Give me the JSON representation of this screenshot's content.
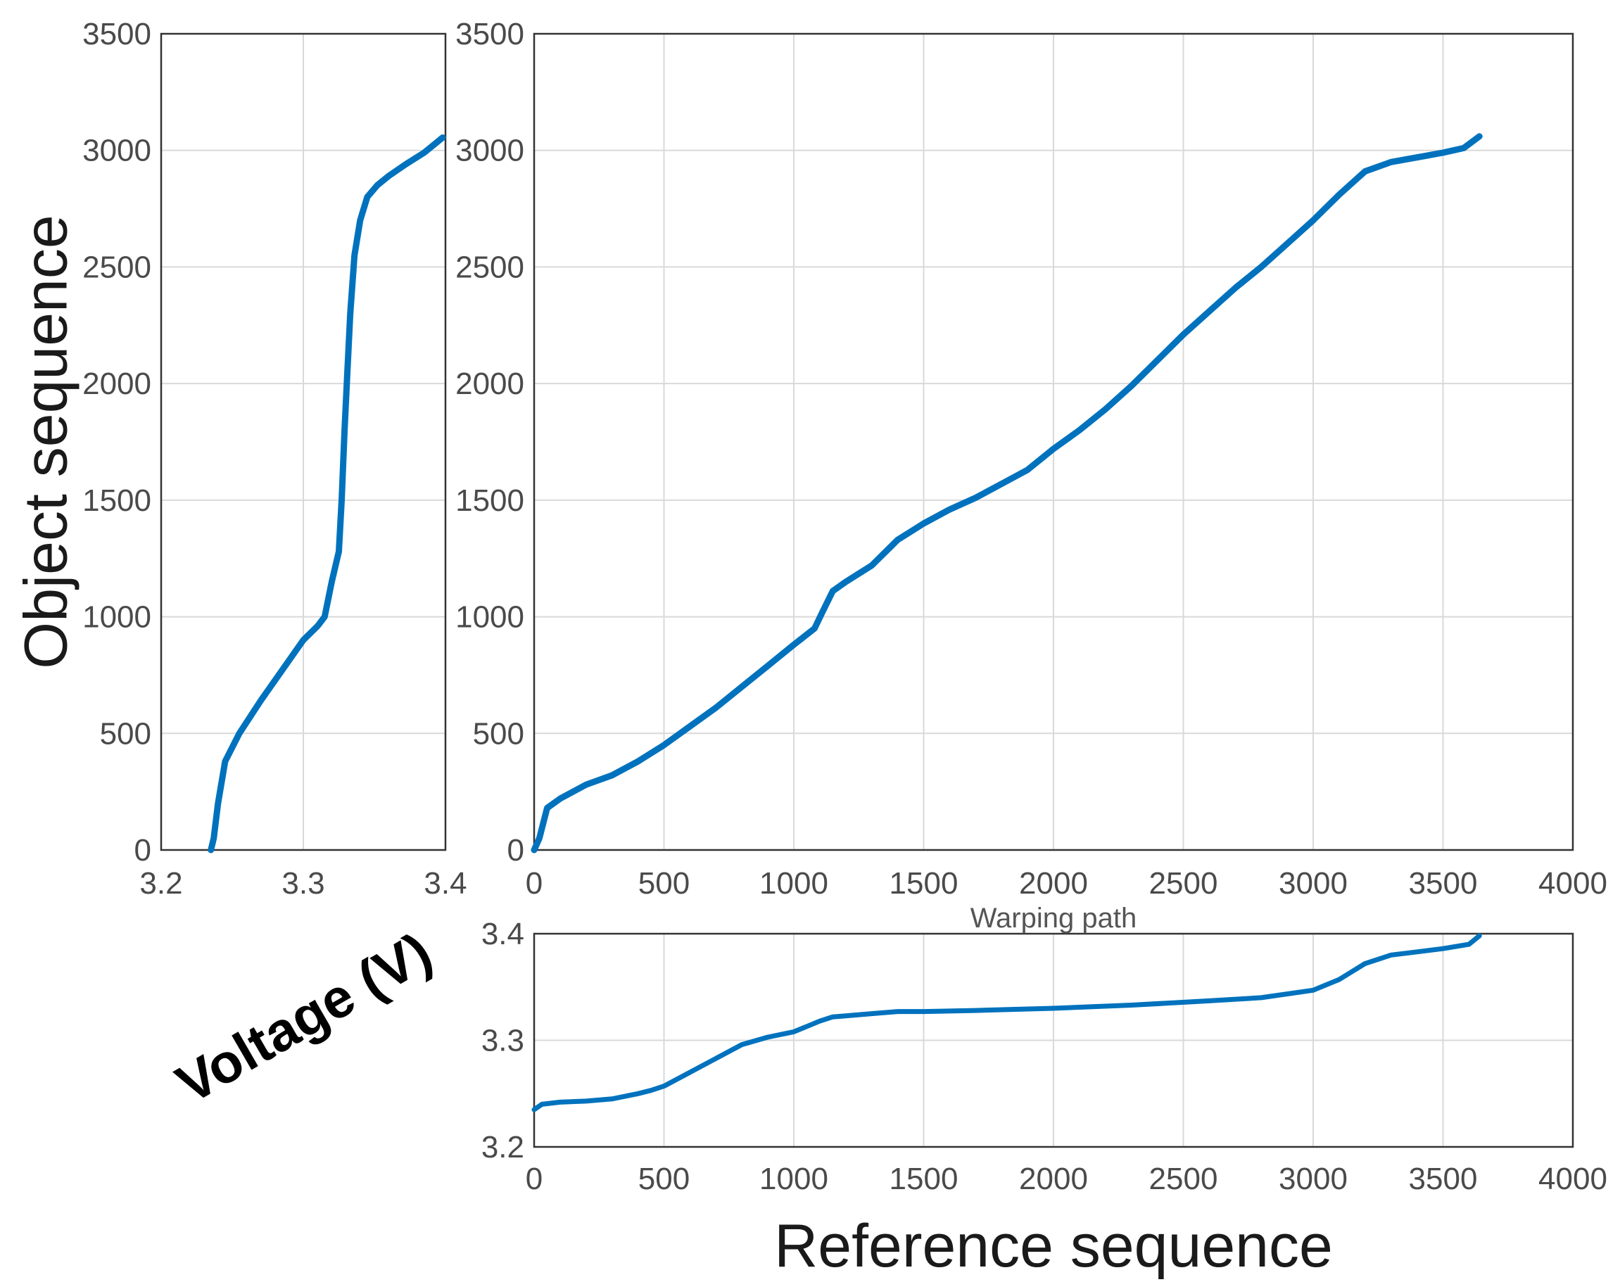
{
  "chart_data": [
    {
      "id": "voltage_vs_object",
      "type": "line",
      "title": "",
      "xlabel": "",
      "ylabel": "Object sequence",
      "xlim": [
        3.2,
        3.4
      ],
      "ylim": [
        0,
        3500
      ],
      "xticks": [
        "3.2",
        "3.3",
        "3.4"
      ],
      "yticks": [
        "0",
        "500",
        "1000",
        "1500",
        "2000",
        "2500",
        "3000",
        "3500"
      ],
      "grid": true,
      "color": "#0072BD",
      "series": [
        {
          "x": [
            3.235,
            3.237,
            3.24,
            3.245,
            3.255,
            3.27,
            3.285,
            3.3,
            3.31,
            3.315,
            3.32,
            3.325,
            3.327,
            3.329,
            3.331,
            3.333,
            3.336,
            3.34,
            3.345,
            3.352,
            3.36,
            3.372,
            3.385,
            3.398
          ],
          "y": [
            0,
            50,
            200,
            380,
            500,
            640,
            770,
            900,
            960,
            1000,
            1150,
            1280,
            1500,
            1800,
            2050,
            2300,
            2550,
            2700,
            2800,
            2850,
            2890,
            2940,
            2990,
            3055
          ]
        }
      ]
    },
    {
      "id": "warping_path",
      "type": "line",
      "title": "",
      "xlabel": "Warping path",
      "ylabel": "",
      "xlim": [
        0,
        4000
      ],
      "ylim": [
        0,
        3500
      ],
      "xticks": [
        "0",
        "500",
        "1000",
        "1500",
        "2000",
        "2500",
        "3000",
        "3500",
        "4000"
      ],
      "yticks": [
        "0",
        "500",
        "1000",
        "1500",
        "2000",
        "2500",
        "3000",
        "3500"
      ],
      "grid": true,
      "color": "#0072BD",
      "series": [
        {
          "x": [
            0,
            20,
            50,
            100,
            200,
            300,
            400,
            500,
            600,
            700,
            800,
            900,
            1000,
            1080,
            1110,
            1150,
            1200,
            1300,
            1400,
            1500,
            1600,
            1700,
            1800,
            1900,
            2000,
            2100,
            2200,
            2300,
            2400,
            2500,
            2600,
            2700,
            2800,
            2900,
            3000,
            3100,
            3200,
            3300,
            3400,
            3500,
            3580,
            3640
          ],
          "y": [
            0,
            50,
            180,
            220,
            280,
            320,
            380,
            450,
            530,
            610,
            700,
            790,
            880,
            950,
            1020,
            1110,
            1150,
            1220,
            1330,
            1400,
            1460,
            1510,
            1570,
            1630,
            1720,
            1800,
            1890,
            1990,
            2100,
            2210,
            2310,
            2410,
            2500,
            2600,
            2700,
            2810,
            2910,
            2950,
            2970,
            2990,
            3010,
            3060
          ]
        }
      ]
    },
    {
      "id": "reference_voltage",
      "type": "line",
      "title": "",
      "xlabel": "Reference sequence",
      "ylabel": "Voltage (V)",
      "xlim": [
        0,
        4000
      ],
      "ylim": [
        3.2,
        3.4
      ],
      "xticks": [
        "0",
        "500",
        "1000",
        "1500",
        "2000",
        "2500",
        "3000",
        "3500",
        "4000"
      ],
      "yticks": [
        "3.2",
        "3.3",
        "3.4"
      ],
      "grid": true,
      "color": "#0072BD",
      "series": [
        {
          "x": [
            0,
            30,
            100,
            200,
            300,
            400,
            450,
            500,
            600,
            700,
            800,
            900,
            1000,
            1050,
            1100,
            1150,
            1200,
            1300,
            1400,
            1500,
            1700,
            2000,
            2300,
            2600,
            2800,
            3000,
            3100,
            3200,
            3300,
            3400,
            3500,
            3600,
            3640
          ],
          "y": [
            3.235,
            3.24,
            3.242,
            3.243,
            3.245,
            3.25,
            3.253,
            3.257,
            3.27,
            3.283,
            3.296,
            3.303,
            3.308,
            3.313,
            3.318,
            3.322,
            3.323,
            3.325,
            3.327,
            3.327,
            3.328,
            3.33,
            3.333,
            3.337,
            3.34,
            3.347,
            3.357,
            3.372,
            3.38,
            3.383,
            3.386,
            3.39,
            3.398
          ]
        }
      ]
    }
  ]
}
